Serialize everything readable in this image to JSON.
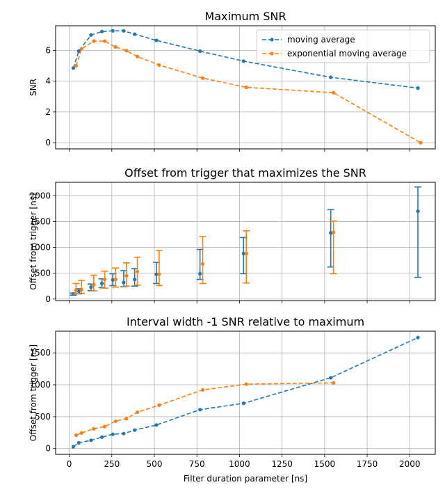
{
  "colors": {
    "moving_average": "#1f77b4",
    "exponential_moving_average": "#ff7f0e"
  },
  "chart_data": [
    {
      "type": "line",
      "title": "Maximum SNR",
      "xlabel": "",
      "ylabel": "SNR",
      "xlim": [
        -80,
        2150
      ],
      "ylim": [
        -0.4,
        7.6
      ],
      "xticks": [
        0,
        250,
        500,
        750,
        1000,
        1250,
        1500,
        1750,
        2000
      ],
      "xtick_labels_visible": false,
      "yticks": [
        0,
        2,
        4,
        6
      ],
      "grid": true,
      "legend": "top-right",
      "series": [
        {
          "name": "moving average",
          "color": "#1f77b4",
          "style": "dashed",
          "marker": "circle",
          "x": [
            24,
            56,
            128,
            192,
            256,
            320,
            384,
            512,
            768,
            1024,
            1536,
            2048
          ],
          "y": [
            4.85,
            5.95,
            7.0,
            7.22,
            7.27,
            7.27,
            7.05,
            6.65,
            5.95,
            5.3,
            4.25,
            3.55
          ]
        },
        {
          "name": "exponential moving average",
          "color": "#ff7f0e",
          "style": "dashed",
          "marker": "circle",
          "x": [
            40,
            72,
            144,
            208,
            272,
            336,
            400,
            528,
            784,
            1040,
            1552,
            2064
          ],
          "y": [
            5.0,
            6.1,
            6.6,
            6.6,
            6.22,
            5.98,
            5.6,
            5.05,
            4.2,
            3.6,
            3.25,
            0.0
          ]
        }
      ]
    },
    {
      "type": "errorbar",
      "title": "Offset from trigger that maximizes the SNR",
      "xlabel": "",
      "ylabel": "Offset from trigger [ns]",
      "xlim": [
        -80,
        2150
      ],
      "ylim": [
        -30,
        2260
      ],
      "xticks": [
        0,
        250,
        500,
        750,
        1000,
        1250,
        1500,
        1750,
        2000
      ],
      "xtick_labels_visible": false,
      "yticks": [
        0,
        500,
        1000,
        1500,
        2000
      ],
      "grid": true,
      "series": [
        {
          "name": "moving average",
          "color": "#1f77b4",
          "x": [
            24,
            56,
            128,
            192,
            256,
            320,
            384,
            512,
            768,
            1024,
            1536,
            2048
          ],
          "y": [
            100,
            150,
            230,
            300,
            370,
            320,
            380,
            480,
            490,
            880,
            1280,
            1700
          ],
          "err_low": [
            75,
            100,
            160,
            220,
            260,
            240,
            250,
            300,
            380,
            490,
            620,
            420
          ],
          "err_high": [
            115,
            200,
            290,
            390,
            490,
            550,
            590,
            710,
            960,
            1190,
            1730,
            2170
          ]
        },
        {
          "name": "exponential moving average",
          "color": "#ff7f0e",
          "x": [
            40,
            72,
            144,
            208,
            272,
            336,
            400,
            528,
            784,
            1040,
            1552
          ],
          "y": [
            170,
            180,
            280,
            380,
            380,
            450,
            530,
            480,
            680,
            880,
            1290
          ],
          "err_low": [
            100,
            110,
            160,
            210,
            230,
            250,
            270,
            260,
            300,
            310,
            490
          ],
          "err_high": [
            300,
            360,
            460,
            540,
            600,
            700,
            810,
            940,
            1210,
            1320,
            1510
          ]
        }
      ]
    },
    {
      "type": "line",
      "title": "Interval width -1 SNR relative to maximum",
      "xlabel": "Filter duration parameter [ns]",
      "ylabel": "Offset from trigger [ns]",
      "xlim": [
        -80,
        2150
      ],
      "ylim": [
        -90,
        1840
      ],
      "xticks": [
        0,
        250,
        500,
        750,
        1000,
        1250,
        1500,
        1750,
        2000
      ],
      "xtick_labels_visible": true,
      "yticks": [
        0,
        500,
        1000,
        1500
      ],
      "grid": true,
      "series": [
        {
          "name": "moving average",
          "color": "#1f77b4",
          "style": "dashed",
          "marker": "circle",
          "x": [
            24,
            56,
            128,
            192,
            256,
            320,
            384,
            512,
            768,
            1024,
            1536,
            2048
          ],
          "y": [
            30,
            90,
            130,
            180,
            225,
            235,
            290,
            370,
            610,
            710,
            1110,
            1740
          ]
        },
        {
          "name": "exponential moving average",
          "color": "#ff7f0e",
          "style": "dashed",
          "marker": "circle",
          "x": [
            40,
            72,
            144,
            208,
            272,
            336,
            400,
            528,
            784,
            1040,
            1552
          ],
          "y": [
            210,
            245,
            310,
            345,
            430,
            470,
            570,
            680,
            920,
            1010,
            1030
          ]
        }
      ]
    }
  ]
}
